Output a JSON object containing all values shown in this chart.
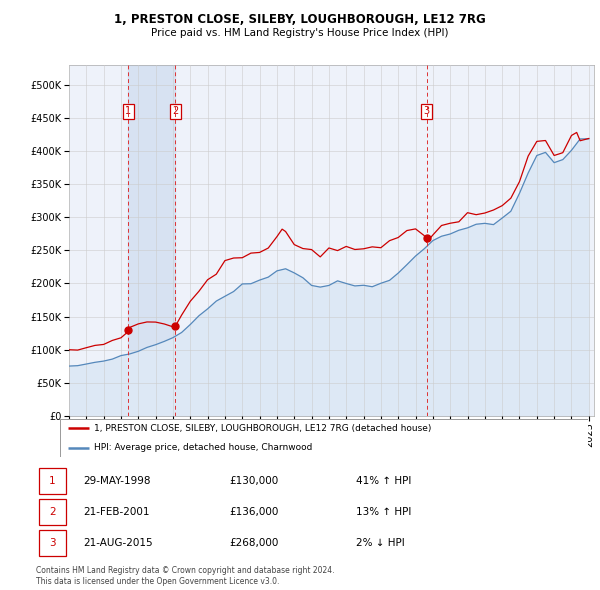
{
  "title": "1, PRESTON CLOSE, SILEBY, LOUGHBOROUGH, LE12 7RG",
  "subtitle": "Price paid vs. HM Land Registry's House Price Index (HPI)",
  "legend_entry1": "1, PRESTON CLOSE, SILEBY, LOUGHBOROUGH, LE12 7RG (detached house)",
  "legend_entry2": "HPI: Average price, detached house, Charnwood",
  "footnote1": "Contains HM Land Registry data © Crown copyright and database right 2024.",
  "footnote2": "This data is licensed under the Open Government Licence v3.0.",
  "transactions": [
    {
      "label": "1",
      "date": "29-MAY-1998",
      "date_num": 1998.41,
      "price": 130000,
      "pct": "41%",
      "dir": "↑"
    },
    {
      "label": "2",
      "date": "21-FEB-2001",
      "date_num": 2001.14,
      "price": 136000,
      "pct": "13%",
      "dir": "↑"
    },
    {
      "label": "3",
      "date": "21-AUG-2015",
      "date_num": 2015.64,
      "price": 268000,
      "pct": "2%",
      "dir": "↓"
    }
  ],
  "property_color": "#cc0000",
  "hpi_color": "#5588bb",
  "hpi_fill_color": "#dde8f5",
  "shade_color": "#dde8f5",
  "background_color": "#eef2fa",
  "grid_color": "#cccccc",
  "xlim": [
    1995,
    2025.3
  ],
  "ylim": [
    0,
    530000
  ],
  "yticks": [
    0,
    50000,
    100000,
    150000,
    200000,
    250000,
    300000,
    350000,
    400000,
    450000,
    500000
  ],
  "xticks": [
    1995,
    1996,
    1997,
    1998,
    1999,
    2000,
    2001,
    2002,
    2003,
    2004,
    2005,
    2006,
    2007,
    2008,
    2009,
    2010,
    2011,
    2012,
    2013,
    2014,
    2015,
    2016,
    2017,
    2018,
    2019,
    2020,
    2021,
    2022,
    2023,
    2024,
    2025
  ],
  "hpi_years": [
    1995,
    1995.5,
    1996,
    1996.5,
    1997,
    1997.5,
    1998,
    1998.5,
    1999,
    1999.5,
    2000,
    2000.5,
    2001,
    2001.5,
    2002,
    2002.5,
    2003,
    2003.5,
    2004,
    2004.5,
    2005,
    2005.5,
    2006,
    2006.5,
    2007,
    2007.5,
    2008,
    2008.5,
    2009,
    2009.5,
    2010,
    2010.5,
    2011,
    2011.5,
    2012,
    2012.5,
    2013,
    2013.5,
    2014,
    2014.5,
    2015,
    2015.5,
    2016,
    2016.5,
    2017,
    2017.5,
    2018,
    2018.5,
    2019,
    2019.5,
    2020,
    2020.5,
    2021,
    2021.5,
    2022,
    2022.5,
    2023,
    2023.5,
    2024,
    2024.5,
    2025
  ],
  "hpi_prices": [
    75000,
    76000,
    78000,
    80000,
    83000,
    86000,
    90000,
    93000,
    98000,
    103000,
    108000,
    113000,
    118000,
    128000,
    140000,
    152000,
    163000,
    173000,
    182000,
    190000,
    197000,
    200000,
    205000,
    212000,
    220000,
    222000,
    218000,
    208000,
    198000,
    195000,
    198000,
    201000,
    200000,
    198000,
    196000,
    197000,
    200000,
    208000,
    218000,
    228000,
    240000,
    252000,
    265000,
    272000,
    278000,
    282000,
    285000,
    287000,
    290000,
    293000,
    298000,
    310000,
    338000,
    365000,
    390000,
    395000,
    385000,
    388000,
    400000,
    415000,
    420000
  ],
  "prop_years": [
    1995,
    1995.5,
    1996,
    1996.5,
    1997,
    1997.5,
    1998,
    1998.41,
    1998.5,
    1999,
    1999.5,
    2000,
    2000.5,
    2001,
    2001.14,
    2001.5,
    2002,
    2002.5,
    2003,
    2003.5,
    2004,
    2004.5,
    2005,
    2005.5,
    2006,
    2006.5,
    2007,
    2007.3,
    2007.5,
    2008,
    2008.5,
    2009,
    2009.5,
    2010,
    2010.5,
    2011,
    2011.5,
    2012,
    2012.5,
    2013,
    2013.5,
    2014,
    2014.5,
    2015,
    2015.5,
    2015.64,
    2016,
    2016.5,
    2017,
    2017.5,
    2018,
    2018.5,
    2019,
    2019.5,
    2020,
    2020.5,
    2021,
    2021.5,
    2022,
    2022.5,
    2023,
    2023.3,
    2023.5,
    2024,
    2024.3,
    2024.5,
    2025
  ],
  "prop_prices": [
    98000,
    100000,
    103000,
    106000,
    109000,
    114000,
    118000,
    130000,
    132000,
    138000,
    143000,
    142000,
    138000,
    135000,
    136000,
    155000,
    172000,
    188000,
    205000,
    218000,
    230000,
    238000,
    240000,
    240000,
    247000,
    258000,
    272000,
    290000,
    275000,
    260000,
    255000,
    248000,
    245000,
    252000,
    256000,
    258000,
    255000,
    248000,
    250000,
    255000,
    262000,
    270000,
    278000,
    285000,
    278000,
    268000,
    272000,
    280000,
    290000,
    295000,
    300000,
    303000,
    306000,
    310000,
    318000,
    330000,
    360000,
    390000,
    415000,
    410000,
    395000,
    405000,
    398000,
    415000,
    430000,
    420000,
    425000
  ]
}
